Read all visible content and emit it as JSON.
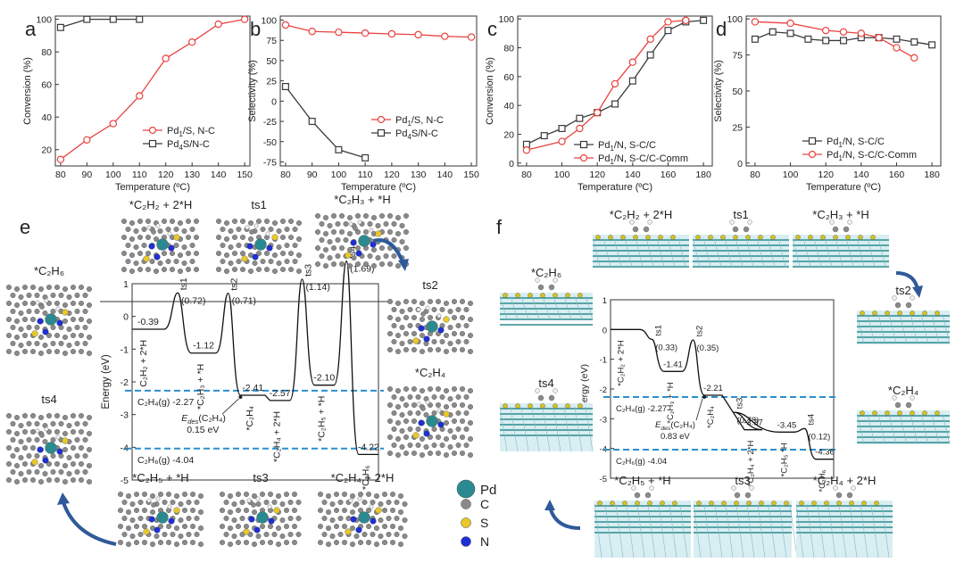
{
  "colors": {
    "red": "#e8433f",
    "black": "#3a3a3a",
    "blue_dash": "#2a8fcf",
    "arrow": "#2e5a9a",
    "pd": "#2a8a8f",
    "c": "#8a8a8a",
    "s": "#e8c82a",
    "n": "#1f2fd6",
    "h": "#f2f2f2",
    "slab": "#2c8c8c",
    "slab_top": "#d6c21e"
  },
  "chart_data": [
    {
      "panel": "a",
      "type": "line",
      "xlabel": "Temperature (ºC)",
      "ylabel": "Conversion (%)",
      "xlim": [
        78,
        152
      ],
      "ylim": [
        10,
        102
      ],
      "xticks": [
        80,
        90,
        100,
        110,
        120,
        130,
        140,
        150
      ],
      "yticks": [
        20,
        40,
        60,
        80,
        100
      ],
      "series": [
        {
          "name_main": "Pd",
          "name_sub": "1",
          "name_rest": "/S, N-C",
          "color": "red",
          "x": [
            80,
            90,
            100,
            110,
            120,
            130,
            140,
            150
          ],
          "y": [
            14,
            26,
            36,
            53,
            76,
            86,
            97,
            100
          ]
        },
        {
          "name_main": "Pd",
          "name_sub": "4",
          "name_rest": "S/N-C",
          "color": "black",
          "x": [
            80,
            90,
            100,
            110
          ],
          "y": [
            95,
            100,
            100,
            100
          ]
        }
      ],
      "legend_pos": "bottom-right"
    },
    {
      "panel": "b",
      "type": "line",
      "xlabel": "Temperature (ºC)",
      "ylabel": "Selectivity (%)",
      "xlim": [
        78,
        152
      ],
      "ylim": [
        -80,
        105
      ],
      "xticks": [
        80,
        90,
        100,
        110,
        120,
        130,
        140,
        150
      ],
      "yticks": [
        -75,
        -50,
        -25,
        0,
        25,
        50,
        75,
        100
      ],
      "series": [
        {
          "name_main": "Pd",
          "name_sub": "1",
          "name_rest": "/S, N-C",
          "color": "red",
          "x": [
            80,
            90,
            100,
            110,
            120,
            130,
            140,
            150
          ],
          "y": [
            94,
            86,
            85,
            84,
            83,
            82,
            80,
            79
          ]
        },
        {
          "name_main": "Pd",
          "name_sub": "4",
          "name_rest": "S/N-C",
          "color": "black",
          "x": [
            80,
            90,
            100,
            110
          ],
          "y": [
            18,
            -25,
            -60,
            -70
          ]
        }
      ],
      "legend_pos": "middle-right"
    },
    {
      "panel": "c",
      "type": "line",
      "xlabel": "Temperature (ºC)",
      "ylabel": "Conversion (%)",
      "xlim": [
        75,
        185
      ],
      "ylim": [
        -2,
        102
      ],
      "xticks": [
        80,
        100,
        120,
        140,
        160,
        180
      ],
      "yticks": [
        0,
        20,
        40,
        60,
        80,
        100
      ],
      "series": [
        {
          "name_main": "Pd",
          "name_sub": "1",
          "name_rest": "/N, S-C/C",
          "color": "black",
          "x": [
            80,
            90,
            100,
            110,
            120,
            130,
            140,
            150,
            160,
            170,
            180
          ],
          "y": [
            13,
            19,
            24,
            31,
            35,
            41,
            57,
            75,
            92,
            98,
            99
          ]
        },
        {
          "name_main": "Pd",
          "name_sub": "1",
          "name_rest": "/N, S-C/C-Comm",
          "color": "red",
          "x": [
            80,
            100,
            110,
            120,
            130,
            140,
            150,
            160,
            170
          ],
          "y": [
            9,
            15,
            24,
            35,
            55,
            70,
            86,
            98,
            99
          ]
        }
      ],
      "legend_pos": "bottom-right"
    },
    {
      "panel": "d",
      "type": "line",
      "xlabel": "Temperature (ºC)",
      "ylabel": "Selectivity (%)",
      "xlim": [
        75,
        185
      ],
      "ylim": [
        -2,
        102
      ],
      "xticks": [
        80,
        100,
        120,
        140,
        160,
        180
      ],
      "yticks": [
        0,
        25,
        50,
        75,
        100
      ],
      "series": [
        {
          "name_main": "Pd",
          "name_sub": "1",
          "name_rest": "/N, S-C/C",
          "color": "black",
          "x": [
            80,
            90,
            100,
            110,
            120,
            130,
            140,
            150,
            160,
            170,
            180
          ],
          "y": [
            86,
            91,
            90,
            86,
            85,
            85,
            87,
            87,
            86,
            84,
            82
          ]
        },
        {
          "name_main": "Pd",
          "name_sub": "1",
          "name_rest": "/N, S-C/C-Comm",
          "color": "red",
          "x": [
            80,
            100,
            120,
            130,
            140,
            150,
            160,
            170
          ],
          "y": [
            98,
            97,
            92,
            91,
            90,
            87,
            80,
            73
          ]
        }
      ],
      "legend_pos": "bottom-right"
    }
  ],
  "panel_e": {
    "letter": "e",
    "ylabel": "Energy (eV)",
    "xlim": [
      0,
      100
    ],
    "ylim": [
      -5,
      1
    ],
    "yticks": [
      -5,
      -4,
      -3,
      -2,
      -1,
      0,
      1
    ],
    "levels": [
      {
        "x": [
          0,
          13
        ],
        "y": -0.39,
        "val": "-0.39"
      },
      {
        "x": [
          24,
          34
        ],
        "y": -1.12,
        "val": "-1.12"
      },
      {
        "x": [
          44,
          54
        ],
        "y": -2.41,
        "val": "-2.41"
      },
      {
        "x": [
          56,
          64
        ],
        "y": -2.57,
        "val": "-2.57"
      },
      {
        "x": [
          74,
          82
        ],
        "y": -2.1,
        "val": "-2.10"
      },
      {
        "x": [
          92,
          100
        ],
        "y": -4.22,
        "val": "-4.22"
      }
    ],
    "ts": [
      {
        "x": 18.5,
        "y": 0.72,
        "name": "ts1",
        "val": "(0.72)"
      },
      {
        "x": 39,
        "y": 0.71,
        "name": "ts2",
        "val": "(0.71)"
      },
      {
        "x": 69,
        "y": 1.14,
        "name": "ts3",
        "val": "(1.14)"
      },
      {
        "x": 87,
        "y": 1.69,
        "name": "ts4",
        "val": "(1.69)"
      }
    ],
    "dashed": [
      {
        "y": -2.27,
        "label": "C₂H₄(g) -2.27"
      },
      {
        "y": -4.04,
        "label": "C₂H₆(g) -4.04"
      }
    ],
    "species": [
      "C₂H₂ + 2*H",
      "*C₂H₃ + *H",
      "*C₂H₄",
      "*C₂H₄ + 2*H",
      "*C₂H₅ + *H",
      "*C₂H₆"
    ],
    "edes_label": "E",
    "edes_sub": "des",
    "edes_rest": "(C₂H₄)",
    "edes_val": "0.15 eV",
    "structures": [
      "*C₂H₂ + 2*H",
      "ts1",
      "*C₂H₃ + *H",
      "*C₂H₆",
      "ts2",
      "*C₂H₄",
      "ts4",
      "*C₂H₅ + *H",
      "ts3",
      "*C₂H₄ + 2*H"
    ]
  },
  "panel_f": {
    "letter": "f",
    "ylabel": "Energy (eV)",
    "xlim": [
      0,
      100
    ],
    "ylim": [
      -5,
      1
    ],
    "yticks": [
      -5,
      -4,
      -3,
      -2,
      -1,
      0,
      1
    ],
    "levels": [
      {
        "x": [
          0,
          13
        ],
        "y": 0,
        "val": ""
      },
      {
        "x": [
          24,
          32
        ],
        "y": -1.41,
        "val": "-1.41"
      },
      {
        "x": [
          42,
          50
        ],
        "y": -2.21,
        "val": "-2.21"
      },
      {
        "x": [
          60,
          68
        ],
        "y": -3.37,
        "val": "-3.37"
      },
      {
        "x": [
          76,
          82
        ],
        "y": -3.45,
        "val": "-3.45"
      },
      {
        "x": [
          92,
          100
        ],
        "y": -4.36,
        "val": "-4.36"
      }
    ],
    "ts": [
      {
        "x": 18.5,
        "y": -0.33,
        "name": "ts1",
        "val": "(0.33)"
      },
      {
        "x": 37,
        "y": -0.35,
        "name": "ts2",
        "val": "(0.35)"
      },
      {
        "x": 55,
        "y": -2.78,
        "name": "ts3",
        "val": "(0.78)"
      },
      {
        "x": 87,
        "y": -3.33,
        "name": "ts4",
        "val": "(0.12)"
      }
    ],
    "dashed": [
      {
        "y": -2.27,
        "label": "C₂H₄(g) -2.27"
      },
      {
        "y": -4.04,
        "label": "C₂H₆(g) -4.04"
      }
    ],
    "species": [
      "*C₂H₂ + 2*H",
      "*C₂H₃ + *H",
      "*C₂H₄",
      "*C₂H₄ + 2*H",
      "*C₂H₅ *H",
      "*C₂H₆"
    ],
    "edes_label": "E",
    "edes_sub": "des",
    "edes_rest": "(C₂H₄)",
    "edes_val": "0.83 eV",
    "structures": [
      "*C₂H₂ + 2*H",
      "ts1",
      "*C₂H₃ + *H",
      "*C₂H₆",
      "ts2",
      "*C₂H₄",
      "ts4",
      "*C₂H₅ + *H",
      "ts3",
      "*C₂H₄ + 2*H"
    ]
  },
  "element_legend": [
    {
      "name": "Pd",
      "color": "pd"
    },
    {
      "name": "C",
      "color": "c"
    },
    {
      "name": "S",
      "color": "s"
    },
    {
      "name": "N",
      "color": "n"
    }
  ]
}
